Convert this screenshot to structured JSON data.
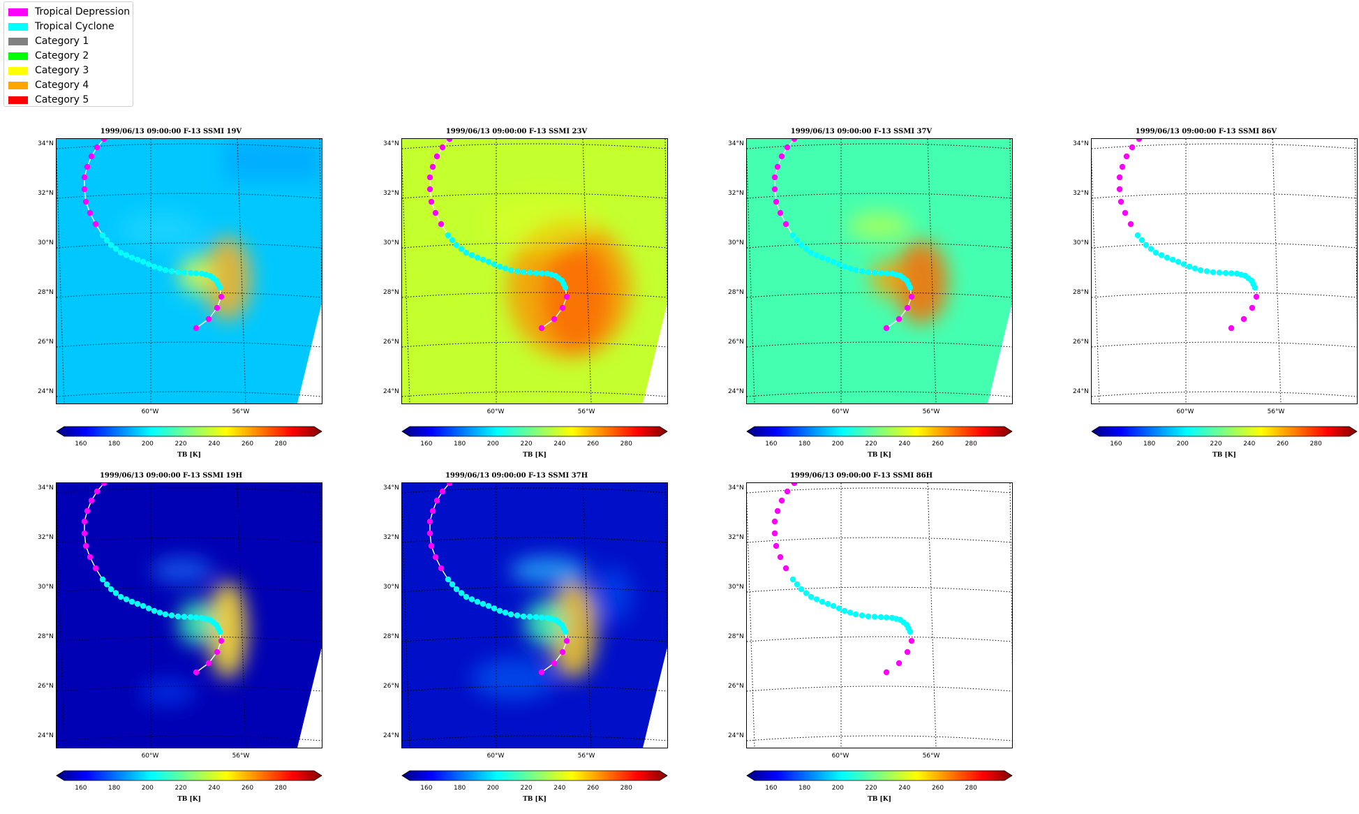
{
  "legend": {
    "entries": [
      {
        "label": "Tropical Depression",
        "color": "#ff00ff"
      },
      {
        "label": "Tropical Cyclone",
        "color": "#00ffff"
      },
      {
        "label": "Category 1",
        "color": "#808080"
      },
      {
        "label": "Category 2",
        "color": "#00ff00"
      },
      {
        "label": "Category 3",
        "color": "#ffff00"
      },
      {
        "label": "Category 4",
        "color": "#ffa500"
      },
      {
        "label": "Category 5",
        "color": "#ff0000"
      }
    ]
  },
  "axes": {
    "lat_labels": [
      "34°N",
      "32°N",
      "30°N",
      "28°N",
      "26°N",
      "24°N"
    ],
    "lon_labels": [
      "60°W",
      "56°W"
    ]
  },
  "colorbar": {
    "ticks": [
      "160",
      "180",
      "200",
      "220",
      "240",
      "260",
      "280"
    ],
    "label": "TB [K]"
  },
  "panels": [
    {
      "title": "1999/06/13 09:00:00  F-13 SSMI 19V",
      "field": "19V",
      "base_color": "#00c8ff"
    },
    {
      "title": "1999/06/13 09:00:00  F-13 SSMI 23V",
      "field": "23V",
      "base_color": "#c4ff2e"
    },
    {
      "title": "1999/06/13 09:00:00  F-13 SSMI 37V",
      "field": "37V",
      "base_color": "#44ffb0"
    },
    {
      "title": "1999/06/13 09:00:00  F-13 SSMI 86V",
      "field": "86V",
      "base_color": "#ffffff"
    },
    {
      "title": "1999/06/13 09:00:00  F-13 SSMI 19H",
      "field": "19H",
      "base_color": "#0000b4"
    },
    {
      "title": "1999/06/13 09:00:00  F-13 SSMI 37H",
      "field": "37H",
      "base_color": "#0010c8"
    },
    {
      "title": "1999/06/13 09:00:00  F-13 SSMI 86H",
      "field": "86H",
      "base_color": "#ffffff"
    }
  ]
}
